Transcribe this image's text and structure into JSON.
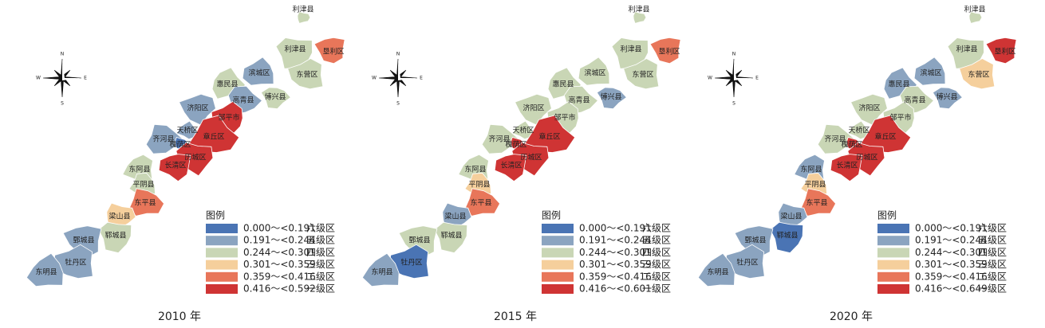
{
  "compass": {
    "n": "N",
    "e": "E",
    "s": "S",
    "w": "W"
  },
  "panels": [
    {
      "caption": "2010 年",
      "legend": {
        "title": "图例",
        "items": [
          {
            "range": "0.000～<0.191",
            "level": "六级区",
            "color": "#4a74b4"
          },
          {
            "range": "0.191～<0.244",
            "level": "五级区",
            "color": "#8ba4c0"
          },
          {
            "range": "0.244～<0.301",
            "level": "四级区",
            "color": "#c9d6b5"
          },
          {
            "range": "0.301～<0.359",
            "level": "三级区",
            "color": "#f5cf9c"
          },
          {
            "range": "0.359～<0.416",
            "level": "二级区",
            "color": "#e8765a"
          },
          {
            "range": "0.416～<0.592",
            "level": "一级区",
            "color": "#cf3434"
          }
        ]
      },
      "counties": [
        {
          "name": "利津县",
          "color": "#c9d6b5"
        },
        {
          "name": "利津县",
          "color": "#c9d6b5"
        },
        {
          "name": "垦利区",
          "color": "#e8765a"
        },
        {
          "name": "东营区",
          "color": "#c9d6b5"
        },
        {
          "name": "滨城区",
          "color": "#8ba4c0"
        },
        {
          "name": "惠民县",
          "color": "#c9d6b5"
        },
        {
          "name": "高青县",
          "color": "#8ba4c0"
        },
        {
          "name": "博兴县",
          "color": "#c9d6b5"
        },
        {
          "name": "济阳区",
          "color": "#8ba4c0"
        },
        {
          "name": "邹平市",
          "color": "#cf3434"
        },
        {
          "name": "天桥区",
          "color": "#8ba4c0"
        },
        {
          "name": "章丘区",
          "color": "#cf3434"
        },
        {
          "name": "齐河县",
          "color": "#8ba4c0"
        },
        {
          "name": "槐荫区",
          "color": "#4a74b4"
        },
        {
          "name": "历城区",
          "color": "#cf3434"
        },
        {
          "name": "长清区",
          "color": "#cf3434"
        },
        {
          "name": "东阿县",
          "color": "#c9d6b5"
        },
        {
          "name": "平阴县",
          "color": "#c9d6b5"
        },
        {
          "name": "东平县",
          "color": "#e8765a"
        },
        {
          "name": "梁山县",
          "color": "#f5cf9c"
        },
        {
          "name": "郓城县",
          "color": "#c9d6b5"
        },
        {
          "name": "鄄城县",
          "color": "#8ba4c0"
        },
        {
          "name": "牡丹区",
          "color": "#8ba4c0"
        },
        {
          "name": "东明县",
          "color": "#8ba4c0"
        }
      ]
    },
    {
      "caption": "2015 年",
      "legend": {
        "title": "图例",
        "items": [
          {
            "range": "0.000～<0.191",
            "level": "六级区",
            "color": "#4a74b4"
          },
          {
            "range": "0.191～<0.244",
            "level": "五级区",
            "color": "#8ba4c0"
          },
          {
            "range": "0.244～<0.301",
            "level": "四级区",
            "color": "#c9d6b5"
          },
          {
            "range": "0.301～<0.359",
            "level": "三级区",
            "color": "#f5cf9c"
          },
          {
            "range": "0.359～<0.416",
            "level": "二级区",
            "color": "#e8765a"
          },
          {
            "range": "0.416～<0.601",
            "level": "一级区",
            "color": "#cf3434"
          }
        ]
      },
      "counties": [
        {
          "name": "利津县",
          "color": "#c9d6b5"
        },
        {
          "name": "利津县",
          "color": "#c9d6b5"
        },
        {
          "name": "垦利区",
          "color": "#e8765a"
        },
        {
          "name": "东营区",
          "color": "#c9d6b5"
        },
        {
          "name": "滨城区",
          "color": "#c9d6b5"
        },
        {
          "name": "惠民县",
          "color": "#c9d6b5"
        },
        {
          "name": "高青县",
          "color": "#c9d6b5"
        },
        {
          "name": "博兴县",
          "color": "#8ba4c0"
        },
        {
          "name": "济阳区",
          "color": "#c9d6b5"
        },
        {
          "name": "邹平市",
          "color": "#c9d6b5"
        },
        {
          "name": "天桥区",
          "color": "#c9d6b5"
        },
        {
          "name": "章丘区",
          "color": "#cf3434"
        },
        {
          "name": "齐河县",
          "color": "#c9d6b5"
        },
        {
          "name": "槐荫区",
          "color": "#cf3434"
        },
        {
          "name": "历城区",
          "color": "#cf3434"
        },
        {
          "name": "长清区",
          "color": "#cf3434"
        },
        {
          "name": "东阿县",
          "color": "#c9d6b5"
        },
        {
          "name": "平阴县",
          "color": "#f5cf9c"
        },
        {
          "name": "东平县",
          "color": "#e8765a"
        },
        {
          "name": "梁山县",
          "color": "#8ba4c0"
        },
        {
          "name": "郓城县",
          "color": "#c9d6b5"
        },
        {
          "name": "鄄城县",
          "color": "#c9d6b5"
        },
        {
          "name": "牡丹区",
          "color": "#4a74b4"
        },
        {
          "name": "东明县",
          "color": "#8ba4c0"
        }
      ]
    },
    {
      "caption": "2020 年",
      "legend": {
        "title": "图例",
        "items": [
          {
            "range": "0.000～<0.191",
            "level": "六级区",
            "color": "#4a74b4"
          },
          {
            "range": "0.191～<0.244",
            "level": "五级区",
            "color": "#8ba4c0"
          },
          {
            "range": "0.244～<0.301",
            "level": "四级区",
            "color": "#c9d6b5"
          },
          {
            "range": "0.301～<0.359",
            "level": "三级区",
            "color": "#f5cf9c"
          },
          {
            "range": "0.359～<0.416",
            "level": "二级区",
            "color": "#e8765a"
          },
          {
            "range": "0.416～<0.649",
            "level": "一级区",
            "color": "#cf3434"
          }
        ]
      },
      "counties": [
        {
          "name": "利津县",
          "color": "#c9d6b5"
        },
        {
          "name": "利津县",
          "color": "#c9d6b5"
        },
        {
          "name": "垦利区",
          "color": "#cf3434"
        },
        {
          "name": "东营区",
          "color": "#f5cf9c"
        },
        {
          "name": "滨城区",
          "color": "#8ba4c0"
        },
        {
          "name": "惠民县",
          "color": "#8ba4c0"
        },
        {
          "name": "高青县",
          "color": "#c9d6b5"
        },
        {
          "name": "博兴县",
          "color": "#8ba4c0"
        },
        {
          "name": "济阳区",
          "color": "#c9d6b5"
        },
        {
          "name": "邹平市",
          "color": "#c9d6b5"
        },
        {
          "name": "天桥区",
          "color": "#c9d6b5"
        },
        {
          "name": "章丘区",
          "color": "#cf3434"
        },
        {
          "name": "齐河县",
          "color": "#c9d6b5"
        },
        {
          "name": "槐荫区",
          "color": "#cf3434"
        },
        {
          "name": "历城区",
          "color": "#cf3434"
        },
        {
          "name": "长清区",
          "color": "#cf3434"
        },
        {
          "name": "东阿县",
          "color": "#8ba4c0"
        },
        {
          "name": "平阴县",
          "color": "#f5cf9c"
        },
        {
          "name": "东平县",
          "color": "#e8765a"
        },
        {
          "name": "梁山县",
          "color": "#8ba4c0"
        },
        {
          "name": "郓城县",
          "color": "#4a74b4"
        },
        {
          "name": "鄄城县",
          "color": "#8ba4c0"
        },
        {
          "name": "牡丹区",
          "color": "#8ba4c0"
        },
        {
          "name": "东明县",
          "color": "#8ba4c0"
        }
      ]
    }
  ]
}
